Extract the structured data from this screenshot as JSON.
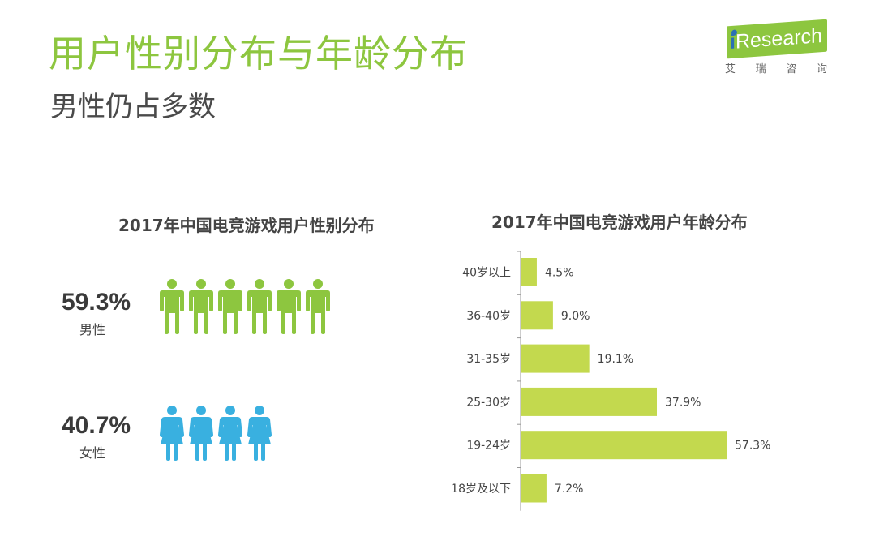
{
  "header": {
    "title": "用户性别分布与年龄分布",
    "subtitle": "男性仍占多数"
  },
  "logo": {
    "brand_prefix": "i",
    "brand_rest": "Research",
    "chinese_chars": [
      "艾",
      "瑞",
      "咨",
      "询"
    ]
  },
  "colors": {
    "accent_green": "#8dc63f",
    "male_icon": "#8dc63f",
    "female_icon": "#39b0e0",
    "bar": "#c3d94e",
    "logo_blue": "#2a6fb5"
  },
  "gender": {
    "title": "2017年中国电竞游戏用户性别分布",
    "male": {
      "percent": "59.3%",
      "label": "男性",
      "icon_count": 6,
      "icon": "male-person-icon"
    },
    "female": {
      "percent": "40.7%",
      "label": "女性",
      "icon_count": 4,
      "icon": "female-person-icon"
    }
  },
  "chart_data": {
    "type": "bar",
    "orientation": "horizontal",
    "title": "2017年中国电竞游戏用户年龄分布",
    "categories": [
      "40岁以上",
      "36-40岁",
      "31-35岁",
      "25-30岁",
      "19-24岁",
      "18岁及以下"
    ],
    "values": [
      4.5,
      9.0,
      19.1,
      37.9,
      57.3,
      7.2
    ],
    "value_labels": [
      "4.5%",
      "9.0%",
      "19.1%",
      "37.9%",
      "57.3%",
      "7.2%"
    ],
    "unit": "%",
    "xlim": [
      0,
      60
    ],
    "grid": false,
    "legend": "none"
  }
}
